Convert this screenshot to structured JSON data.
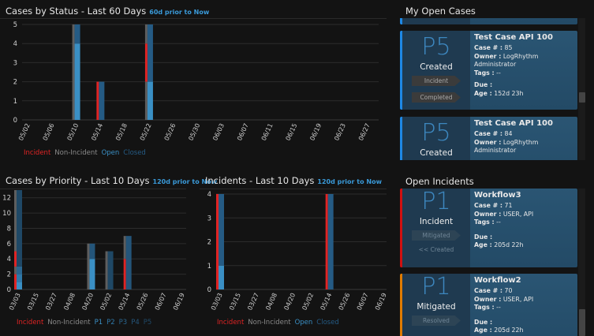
{
  "colors": {
    "incident": "#e02424",
    "non_incident": "#5e5e5e",
    "open": "#3a8fc4",
    "closed": "#255b84",
    "P1": "#3a8fc4",
    "P2": "#2f78a8",
    "P3": "#2a6690",
    "P4": "#24557a",
    "P5": "#1f4866"
  },
  "charts": [
    {
      "title": "Cases by Status - Last 60 Days",
      "subtitle": "60d prior to Now",
      "legend": [
        {
          "label": "Incident",
          "key": "incident"
        },
        {
          "label": "Non-Incident",
          "key": "non_incident"
        },
        {
          "label": "Open",
          "key": "open"
        },
        {
          "label": "Closed",
          "key": "closed"
        }
      ],
      "chart_data": {
        "type": "bar",
        "stacked": true,
        "grid": true,
        "legend": "bottom-left",
        "categories": [
          "05/02",
          "05/06",
          "05/10",
          "05/14",
          "05/18",
          "05/22",
          "05/26",
          "05/30",
          "06/03",
          "06/07",
          "06/11",
          "06/15",
          "06/19",
          "06/23",
          "06/27"
        ],
        "ylim": [
          0,
          5
        ],
        "yticks": [
          0,
          1,
          2,
          3,
          4,
          5
        ],
        "bars": [
          {
            "category": "05/10",
            "type_stack": [
              {
                "key": "non_incident",
                "value": 5
              }
            ],
            "status_stack": [
              {
                "key": "open",
                "value": 4
              },
              {
                "key": "closed",
                "value": 1
              }
            ]
          },
          {
            "category": "05/14",
            "type_stack": [
              {
                "key": "incident",
                "value": 2
              }
            ],
            "status_stack": [
              {
                "key": "closed",
                "value": 2
              }
            ]
          },
          {
            "category": "05/22",
            "type_stack": [
              {
                "key": "non_incident",
                "value": 2
              },
              {
                "key": "incident",
                "value": 2
              },
              {
                "key": "non_incident",
                "value": 1
              }
            ],
            "status_stack": [
              {
                "key": "open",
                "value": 2
              },
              {
                "key": "closed",
                "value": 3
              }
            ]
          }
        ]
      }
    },
    {
      "title": "Cases by Priority - Last 10 Days",
      "subtitle": "120d prior to Now",
      "legend": [
        {
          "label": "Incident",
          "key": "incident"
        },
        {
          "label": "Non-Incident",
          "key": "non_incident"
        },
        {
          "label": "P1",
          "key": "P1"
        },
        {
          "label": "P2",
          "key": "P2"
        },
        {
          "label": "P3",
          "key": "P3"
        },
        {
          "label": "P4",
          "key": "P4"
        },
        {
          "label": "P5",
          "key": "P5"
        }
      ],
      "chart_data": {
        "type": "bar",
        "stacked": true,
        "grid": true,
        "legend": "bottom-left",
        "categories": [
          "03/03",
          "03/15",
          "03/27",
          "04/08",
          "04/20",
          "05/02",
          "05/14",
          "05/26",
          "06/07",
          "06/19"
        ],
        "ylim": [
          0,
          13
        ],
        "yticks": [
          0,
          2,
          4,
          6,
          8,
          10,
          12
        ],
        "bars": [
          {
            "category": "03/03",
            "type_stack": [
              {
                "key": "incident",
                "value": 2
              },
              {
                "key": "non_incident",
                "value": 1
              },
              {
                "key": "incident",
                "value": 2
              },
              {
                "key": "non_incident",
                "value": 8
              }
            ],
            "status_stack": [
              {
                "key": "P1",
                "value": 1
              },
              {
                "key": "P2",
                "value": 1
              },
              {
                "key": "P3",
                "value": 1
              },
              {
                "key": "P5",
                "value": 10
              }
            ]
          },
          {
            "category": "04/20",
            "type_stack": [
              {
                "key": "non_incident",
                "value": 6
              }
            ],
            "status_stack": [
              {
                "key": "P1",
                "value": 4
              },
              {
                "key": "P4",
                "value": 2
              }
            ]
          },
          {
            "category": "05/02",
            "type_stack": [
              {
                "key": "non_incident",
                "value": 5
              }
            ],
            "status_stack": [
              {
                "key": "P5",
                "value": 5
              }
            ]
          },
          {
            "category": "05/14",
            "type_stack": [
              {
                "key": "incident",
                "value": 4
              },
              {
                "key": "non_incident",
                "value": 3
              }
            ],
            "status_stack": [
              {
                "key": "P4",
                "value": 7
              }
            ]
          }
        ]
      }
    },
    {
      "title": "Incidents - Last 10 Days",
      "subtitle": "120d prior to Now",
      "legend": [
        {
          "label": "Incident",
          "key": "incident"
        },
        {
          "label": "Non-Incident",
          "key": "non_incident"
        },
        {
          "label": "Open",
          "key": "open"
        },
        {
          "label": "Closed",
          "key": "closed"
        }
      ],
      "chart_data": {
        "type": "bar",
        "stacked": true,
        "grid": true,
        "legend": "bottom-left",
        "categories": [
          "03/03",
          "03/15",
          "03/27",
          "04/08",
          "04/20",
          "05/02",
          "05/14",
          "05/26",
          "06/07",
          "06/19"
        ],
        "ylim": [
          0,
          4
        ],
        "yticks": [
          0,
          1,
          2,
          3,
          4
        ],
        "bars": [
          {
            "category": "03/03",
            "type_stack": [
              {
                "key": "incident",
                "value": 4
              }
            ],
            "status_stack": [
              {
                "key": "open",
                "value": 1
              },
              {
                "key": "closed",
                "value": 3
              }
            ]
          },
          {
            "category": "05/14",
            "type_stack": [
              {
                "key": "incident",
                "value": 4
              }
            ],
            "status_stack": [
              {
                "key": "closed",
                "value": 4
              }
            ]
          }
        ]
      }
    }
  ],
  "my_open_cases": {
    "title": "My Open Cases",
    "cards": [
      {
        "priority": "P5",
        "status": "Created",
        "tag1": "Incident",
        "tag2": "Completed",
        "name": "Test Case API 100",
        "case_label": "Case # :",
        "case": "85",
        "owner_label": "Owner :",
        "owner": "LogRhythm Administrator",
        "tags_label": "Tags :",
        "tags": "--",
        "due_label": "Due :",
        "due": "",
        "age_label": "Age :",
        "age": "152d 23h",
        "accent": "#1e88e5"
      },
      {
        "priority": "P5",
        "status": "Created",
        "name": "Test Case API 100",
        "case_label": "Case # :",
        "case": "84",
        "owner_label": "Owner :",
        "owner": "LogRhythm Administrator",
        "accent": "#1e88e5"
      }
    ]
  },
  "open_incidents": {
    "title": "Open Incidents",
    "cards": [
      {
        "priority": "P1",
        "status": "Incident",
        "next": "Mitigated",
        "back": "<< Created",
        "name": "Workflow3",
        "case_label": "Case # :",
        "case": "71",
        "owner_label": "Owner :",
        "owner": "USER, API",
        "tags_label": "Tags :",
        "tags": "--",
        "due_label": "Due :",
        "due": "",
        "age_label": "Age :",
        "age": "205d 22h",
        "accent": "#d01010"
      },
      {
        "priority": "P1",
        "status": "Mitigated",
        "next": "Resolved",
        "name": "Workflow2",
        "case_label": "Case # :",
        "case": "70",
        "owner_label": "Owner :",
        "owner": "USER, API",
        "tags_label": "Tags :",
        "tags": "--",
        "due_label": "Due :",
        "due": "",
        "age_label": "Age :",
        "age": "205d 22h",
        "accent": "#e07b00"
      }
    ]
  }
}
